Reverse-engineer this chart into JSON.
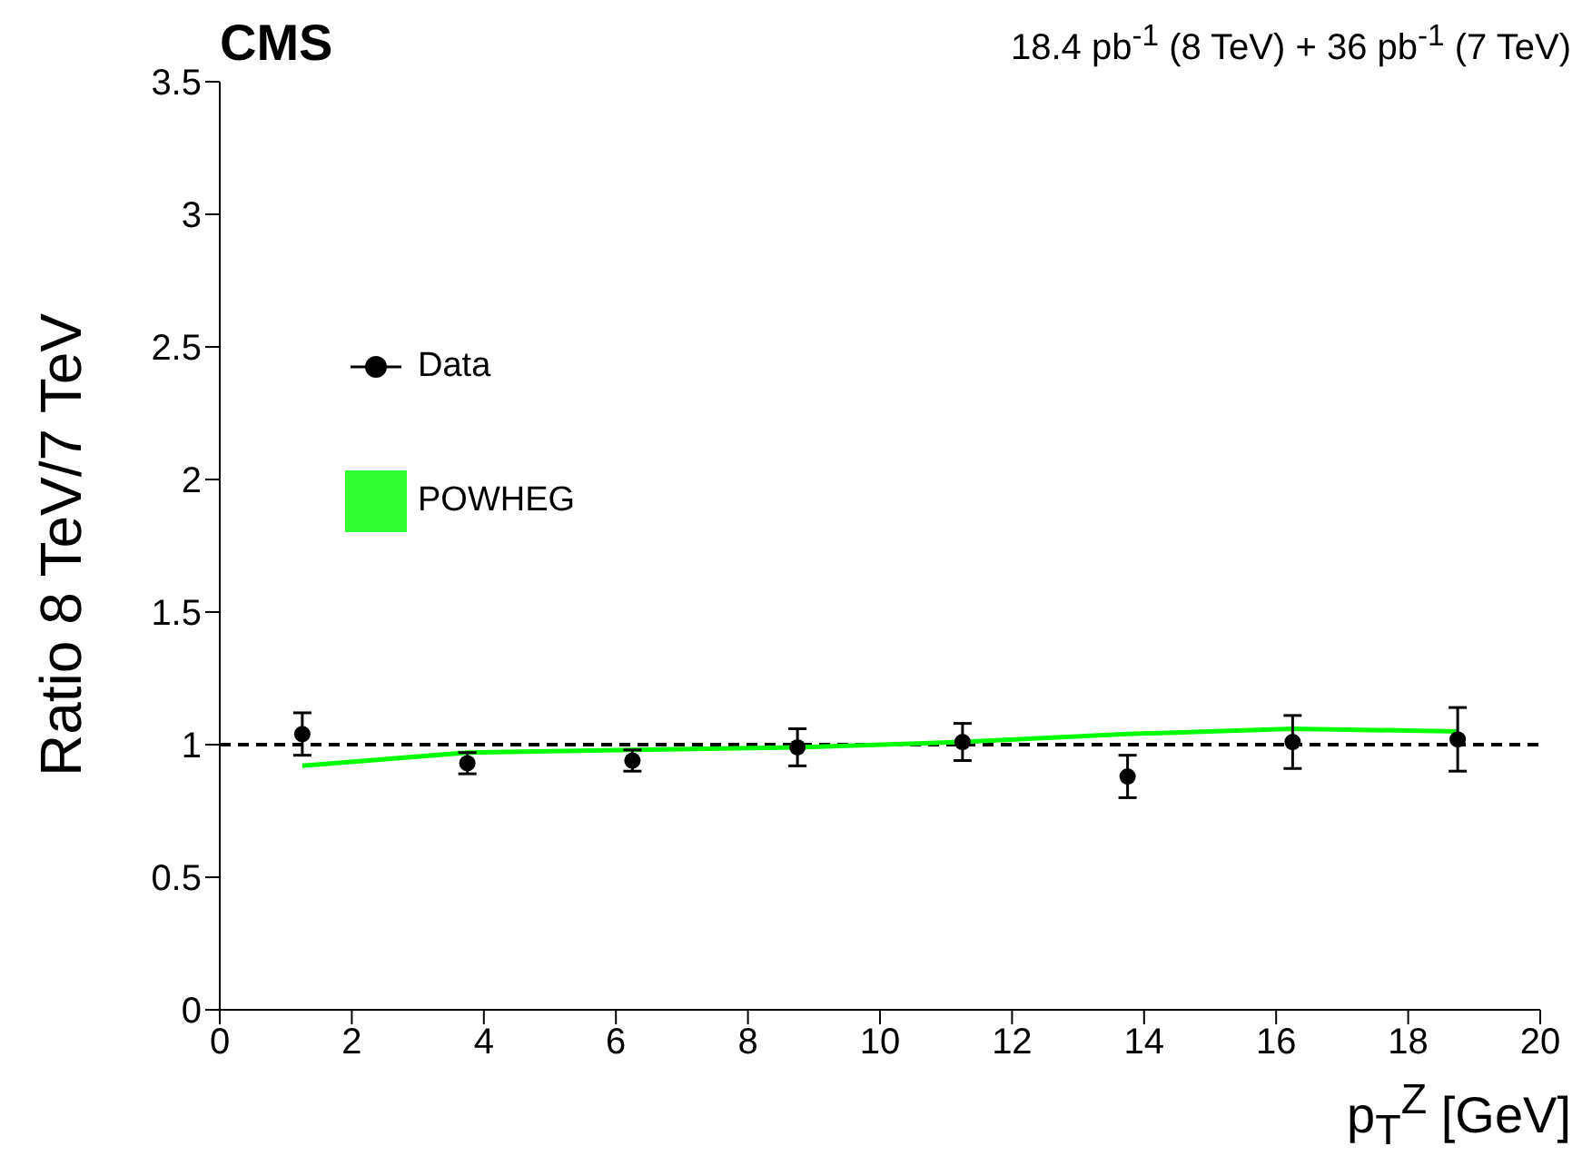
{
  "chart_data": {
    "type": "scatter",
    "title": "CMS",
    "subtitle": "18.4 pb$^{-1}$ (8 TeV) + 36 pb$^{-1}$ (7 TeV)",
    "xlabel": "p$_{T}$$^{Z}$ [GeV]",
    "ylabel": "Ratio 8 TeV/7 TeV",
    "x": [
      1.25,
      3.75,
      6.25,
      8.75,
      11.25,
      13.75,
      16.25,
      18.75
    ],
    "series": [
      {
        "name": "Data",
        "marker": "circle",
        "color": "#000000",
        "values": [
          1.04,
          0.93,
          0.94,
          0.99,
          1.01,
          0.88,
          1.01,
          1.02
        ],
        "errors": [
          0.08,
          0.04,
          0.04,
          0.07,
          0.07,
          0.08,
          0.1,
          0.12
        ]
      },
      {
        "name": "POWHEG",
        "type": "line",
        "color": "#00ff00",
        "values": [
          0.92,
          0.97,
          0.98,
          0.99,
          1.01,
          1.04,
          1.06,
          1.05
        ]
      }
    ],
    "xlim": [
      0,
      20
    ],
    "xticks": [
      0,
      2,
      4,
      6,
      8,
      10,
      12,
      14,
      16,
      18,
      20
    ],
    "ylim": [
      0,
      3.5
    ],
    "yticks": [
      0,
      0.5,
      1,
      1.5,
      2,
      2.5,
      3,
      3.5
    ],
    "ref_lines": [
      {
        "axis": "y",
        "value": 1,
        "color": "#000000",
        "line_style": "dashed"
      }
    ],
    "legend": "top left",
    "grid": false
  }
}
